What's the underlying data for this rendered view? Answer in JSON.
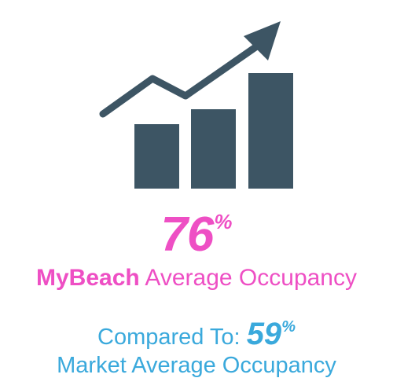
{
  "colors": {
    "icon": "#3d5564",
    "pink": "#ee4fc4",
    "blue": "#3aa9dc"
  },
  "icon": "bar-chart-trend-up-icon",
  "headline": {
    "value": "76",
    "symbol": "%"
  },
  "subtitle": {
    "brand": "MyBeach",
    "rest": "Average Occupancy"
  },
  "compare": {
    "label": "Compared To:",
    "value": "59",
    "symbol": "%"
  },
  "market": {
    "text": "Market Average Occupancy"
  }
}
